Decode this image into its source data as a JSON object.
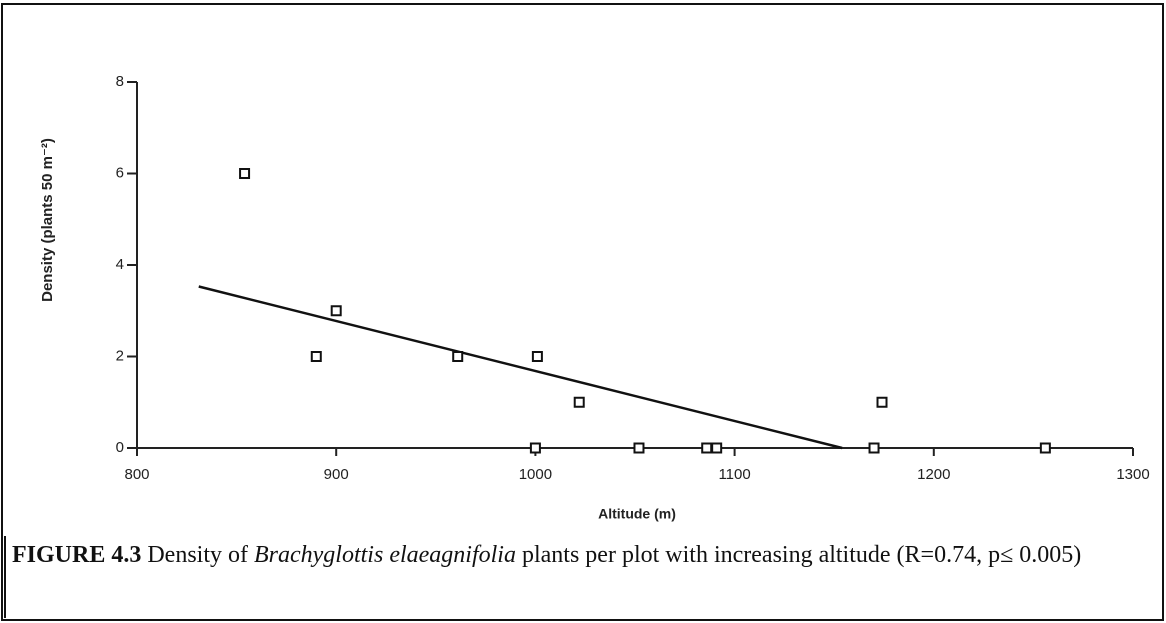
{
  "chart_data": {
    "type": "scatter",
    "xlabel": "Altitude (m)",
    "ylabel": "Density (plants 50 m⁻²)",
    "x": [
      854,
      890,
      900,
      961,
      1001,
      1022,
      1000,
      1052,
      1086,
      1091,
      1170,
      1174,
      1256
    ],
    "series": [
      {
        "name": null,
        "color": "#111111",
        "values": [
          6,
          2,
          3,
          2,
          2,
          1,
          0,
          0,
          0,
          0,
          0,
          1,
          0
        ]
      }
    ],
    "trendline": {
      "x": [
        831,
        1154
      ],
      "y": [
        3.53,
        0
      ],
      "color": "#111111"
    },
    "xlim": [
      800,
      1300
    ],
    "xticks": [
      800,
      900,
      1000,
      1100,
      1200,
      1300
    ],
    "ylim": [
      0,
      8
    ],
    "yticks": [
      0,
      2,
      4,
      6,
      8
    ],
    "grid": false
  },
  "caption": {
    "label": "FIGURE 4.3",
    "before": "Density of",
    "species": "Brachyglottis elaeagnifolia",
    "after": "plants per plot with increasing altitude (R=0.74, p≤ 0.005)"
  }
}
